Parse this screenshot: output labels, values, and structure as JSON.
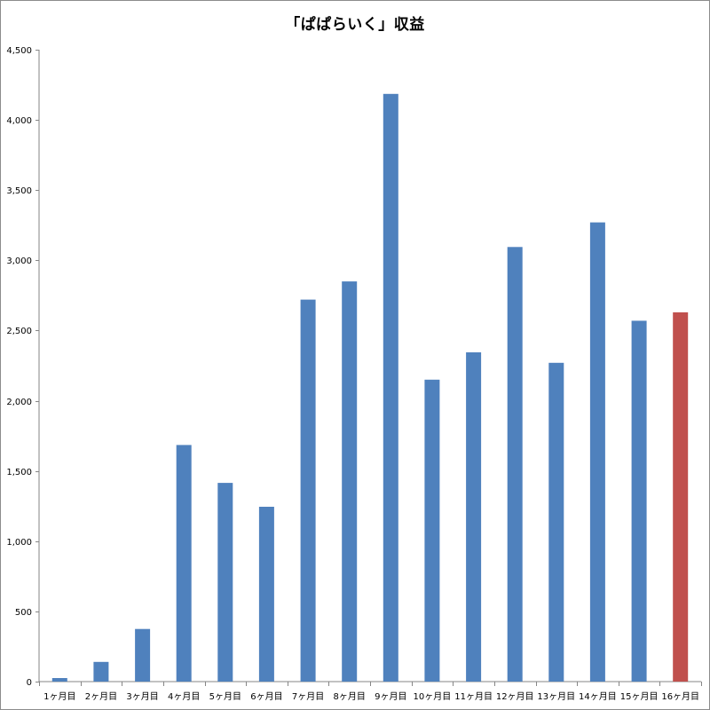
{
  "chart_data": {
    "type": "bar",
    "title": "「ぱぱらいく」収益",
    "xlabel": "",
    "ylabel": "",
    "categories": [
      "1ヶ月目",
      "2ヶ月目",
      "3ヶ月目",
      "4ヶ月目",
      "5ヶ月目",
      "6ヶ月目",
      "7ヶ月目",
      "8ヶ月目",
      "9ヶ月目",
      "10ヶ月目",
      "11ヶ月目",
      "12ヶ月目",
      "13ヶ月目",
      "14ヶ月目",
      "15ヶ月目",
      "16ヶ月目"
    ],
    "values": [
      25,
      140,
      375,
      1685,
      1415,
      1245,
      2720,
      2850,
      4185,
      2150,
      2345,
      3095,
      2270,
      3270,
      2570,
      2630
    ],
    "bar_colors": [
      "#4f81bd",
      "#4f81bd",
      "#4f81bd",
      "#4f81bd",
      "#4f81bd",
      "#4f81bd",
      "#4f81bd",
      "#4f81bd",
      "#4f81bd",
      "#4f81bd",
      "#4f81bd",
      "#4f81bd",
      "#4f81bd",
      "#4f81bd",
      "#4f81bd",
      "#c0504d"
    ],
    "ylim": [
      0,
      4500
    ],
    "yticks": [
      0,
      500,
      1000,
      1500,
      2000,
      2500,
      3000,
      3500,
      4000,
      4500
    ],
    "ytick_labels": [
      "0",
      "500",
      "1,000",
      "1,500",
      "2,000",
      "2,500",
      "3,000",
      "3,500",
      "4,000",
      "4,500"
    ],
    "grid": false,
    "legend": "none"
  }
}
